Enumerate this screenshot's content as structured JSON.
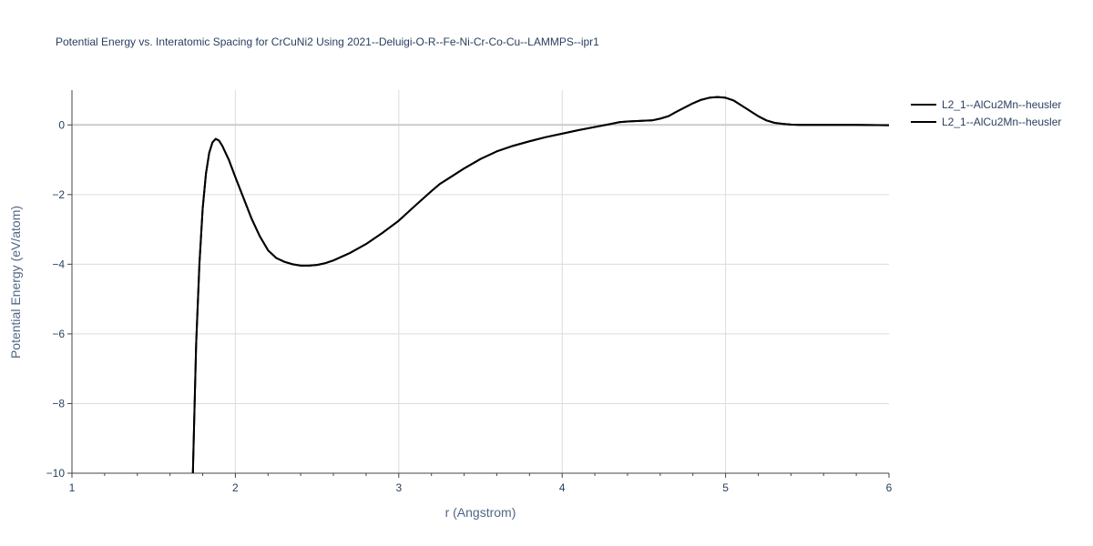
{
  "chart_data": {
    "type": "line",
    "title": "Potential Energy vs. Interatomic Spacing for CrCuNi2 Using 2021--Deluigi-O-R--Fe-Ni-Cr-Co-Cu--LAMMPS--ipr1",
    "xlabel": "r (Angstrom)",
    "ylabel": "Potential Energy (eV/atom)",
    "xlim": [
      1,
      6
    ],
    "ylim": [
      -10,
      1
    ],
    "xticks": [
      1,
      2,
      3,
      4,
      5,
      6
    ],
    "xtick_labels": [
      "1",
      "2",
      "3",
      "4",
      "5",
      "6"
    ],
    "yticks": [
      -10,
      -8,
      -6,
      -4,
      -2,
      0
    ],
    "ytick_labels": [
      "−10",
      "−8",
      "−6",
      "−4",
      "−2",
      "0"
    ],
    "grid": true,
    "legend_position": "top-right",
    "series_color": "#000000",
    "series": [
      {
        "name": "L2_1--AlCu2Mn--heusler",
        "x": [
          1.74,
          1.76,
          1.78,
          1.8,
          1.82,
          1.84,
          1.86,
          1.88,
          1.9,
          1.92,
          1.96,
          2.0,
          2.05,
          2.1,
          2.15,
          2.2,
          2.25,
          2.3,
          2.35,
          2.4,
          2.45,
          2.5,
          2.55,
          2.6,
          2.7,
          2.8,
          2.9,
          3.0,
          3.1,
          3.2,
          3.25,
          3.3,
          3.4,
          3.5,
          3.6,
          3.7,
          3.8,
          3.9,
          4.0,
          4.1,
          4.2,
          4.3,
          4.35,
          4.4,
          4.5,
          4.55,
          4.6,
          4.65,
          4.7,
          4.75,
          4.8,
          4.85,
          4.9,
          4.95,
          5.0,
          5.05,
          5.1,
          5.15,
          5.2,
          5.25,
          5.3,
          5.35,
          5.4,
          5.45,
          5.5,
          5.6,
          5.8,
          6.0
        ],
        "y": [
          -10.0,
          -6.3,
          -4.0,
          -2.4,
          -1.4,
          -0.8,
          -0.5,
          -0.4,
          -0.45,
          -0.6,
          -1.0,
          -1.5,
          -2.1,
          -2.7,
          -3.2,
          -3.6,
          -3.82,
          -3.93,
          -4.0,
          -4.04,
          -4.04,
          -4.02,
          -3.97,
          -3.89,
          -3.68,
          -3.42,
          -3.1,
          -2.75,
          -2.32,
          -1.9,
          -1.7,
          -1.55,
          -1.25,
          -0.98,
          -0.76,
          -0.6,
          -0.47,
          -0.35,
          -0.25,
          -0.15,
          -0.06,
          0.03,
          0.08,
          0.1,
          0.12,
          0.13,
          0.18,
          0.25,
          0.38,
          0.5,
          0.62,
          0.72,
          0.78,
          0.8,
          0.78,
          0.7,
          0.55,
          0.4,
          0.25,
          0.13,
          0.06,
          0.03,
          0.01,
          0.0,
          0.0,
          0.0,
          0.0,
          -0.01
        ]
      },
      {
        "name": "L2_1--AlCu2Mn--heusler",
        "x": [
          1.74,
          1.76,
          1.78,
          1.8,
          1.82,
          1.84,
          1.86,
          1.88,
          1.9,
          1.92,
          1.96,
          2.0,
          2.05,
          2.1,
          2.15,
          2.2,
          2.25,
          2.3,
          2.35,
          2.4,
          2.45,
          2.5,
          2.55,
          2.6,
          2.7,
          2.8,
          2.9,
          3.0,
          3.1,
          3.2,
          3.25,
          3.3,
          3.4,
          3.5,
          3.6,
          3.7,
          3.8,
          3.9,
          4.0,
          4.1,
          4.2,
          4.3,
          4.35,
          4.4,
          4.5,
          4.55,
          4.6,
          4.65,
          4.7,
          4.75,
          4.8,
          4.85,
          4.9,
          4.95,
          5.0,
          5.05,
          5.1,
          5.15,
          5.2,
          5.25,
          5.3,
          5.35,
          5.4,
          5.45,
          5.5,
          5.6,
          5.8,
          6.0
        ],
        "y": [
          -10.0,
          -6.3,
          -4.0,
          -2.4,
          -1.4,
          -0.8,
          -0.5,
          -0.4,
          -0.45,
          -0.6,
          -1.0,
          -1.5,
          -2.1,
          -2.7,
          -3.2,
          -3.6,
          -3.82,
          -3.93,
          -4.0,
          -4.04,
          -4.04,
          -4.02,
          -3.97,
          -3.89,
          -3.68,
          -3.42,
          -3.1,
          -2.75,
          -2.32,
          -1.9,
          -1.7,
          -1.55,
          -1.25,
          -0.98,
          -0.76,
          -0.6,
          -0.47,
          -0.35,
          -0.25,
          -0.15,
          -0.06,
          0.03,
          0.08,
          0.1,
          0.12,
          0.13,
          0.18,
          0.25,
          0.38,
          0.5,
          0.62,
          0.72,
          0.78,
          0.8,
          0.78,
          0.7,
          0.55,
          0.4,
          0.25,
          0.13,
          0.06,
          0.03,
          0.01,
          0.0,
          0.0,
          0.0,
          0.0,
          -0.01
        ]
      }
    ]
  }
}
